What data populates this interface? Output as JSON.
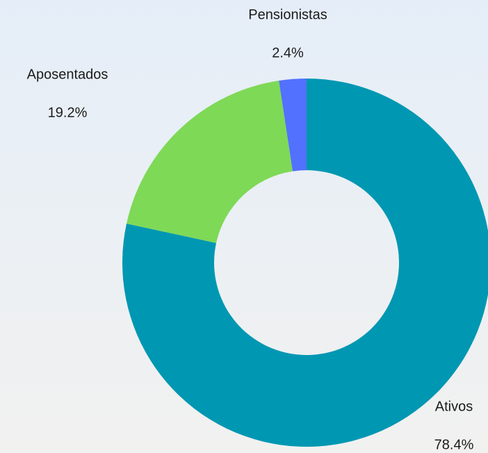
{
  "chart_data": {
    "type": "donut",
    "categories": [
      "Ativos",
      "Aposentados",
      "Pensionistas"
    ],
    "values": [
      78.4,
      19.2,
      2.4
    ],
    "value_labels": [
      "78.4%",
      "19.2%",
      "2.4%"
    ],
    "colors": [
      "#0097b2",
      "#7ed957",
      "#5271ff"
    ]
  }
}
